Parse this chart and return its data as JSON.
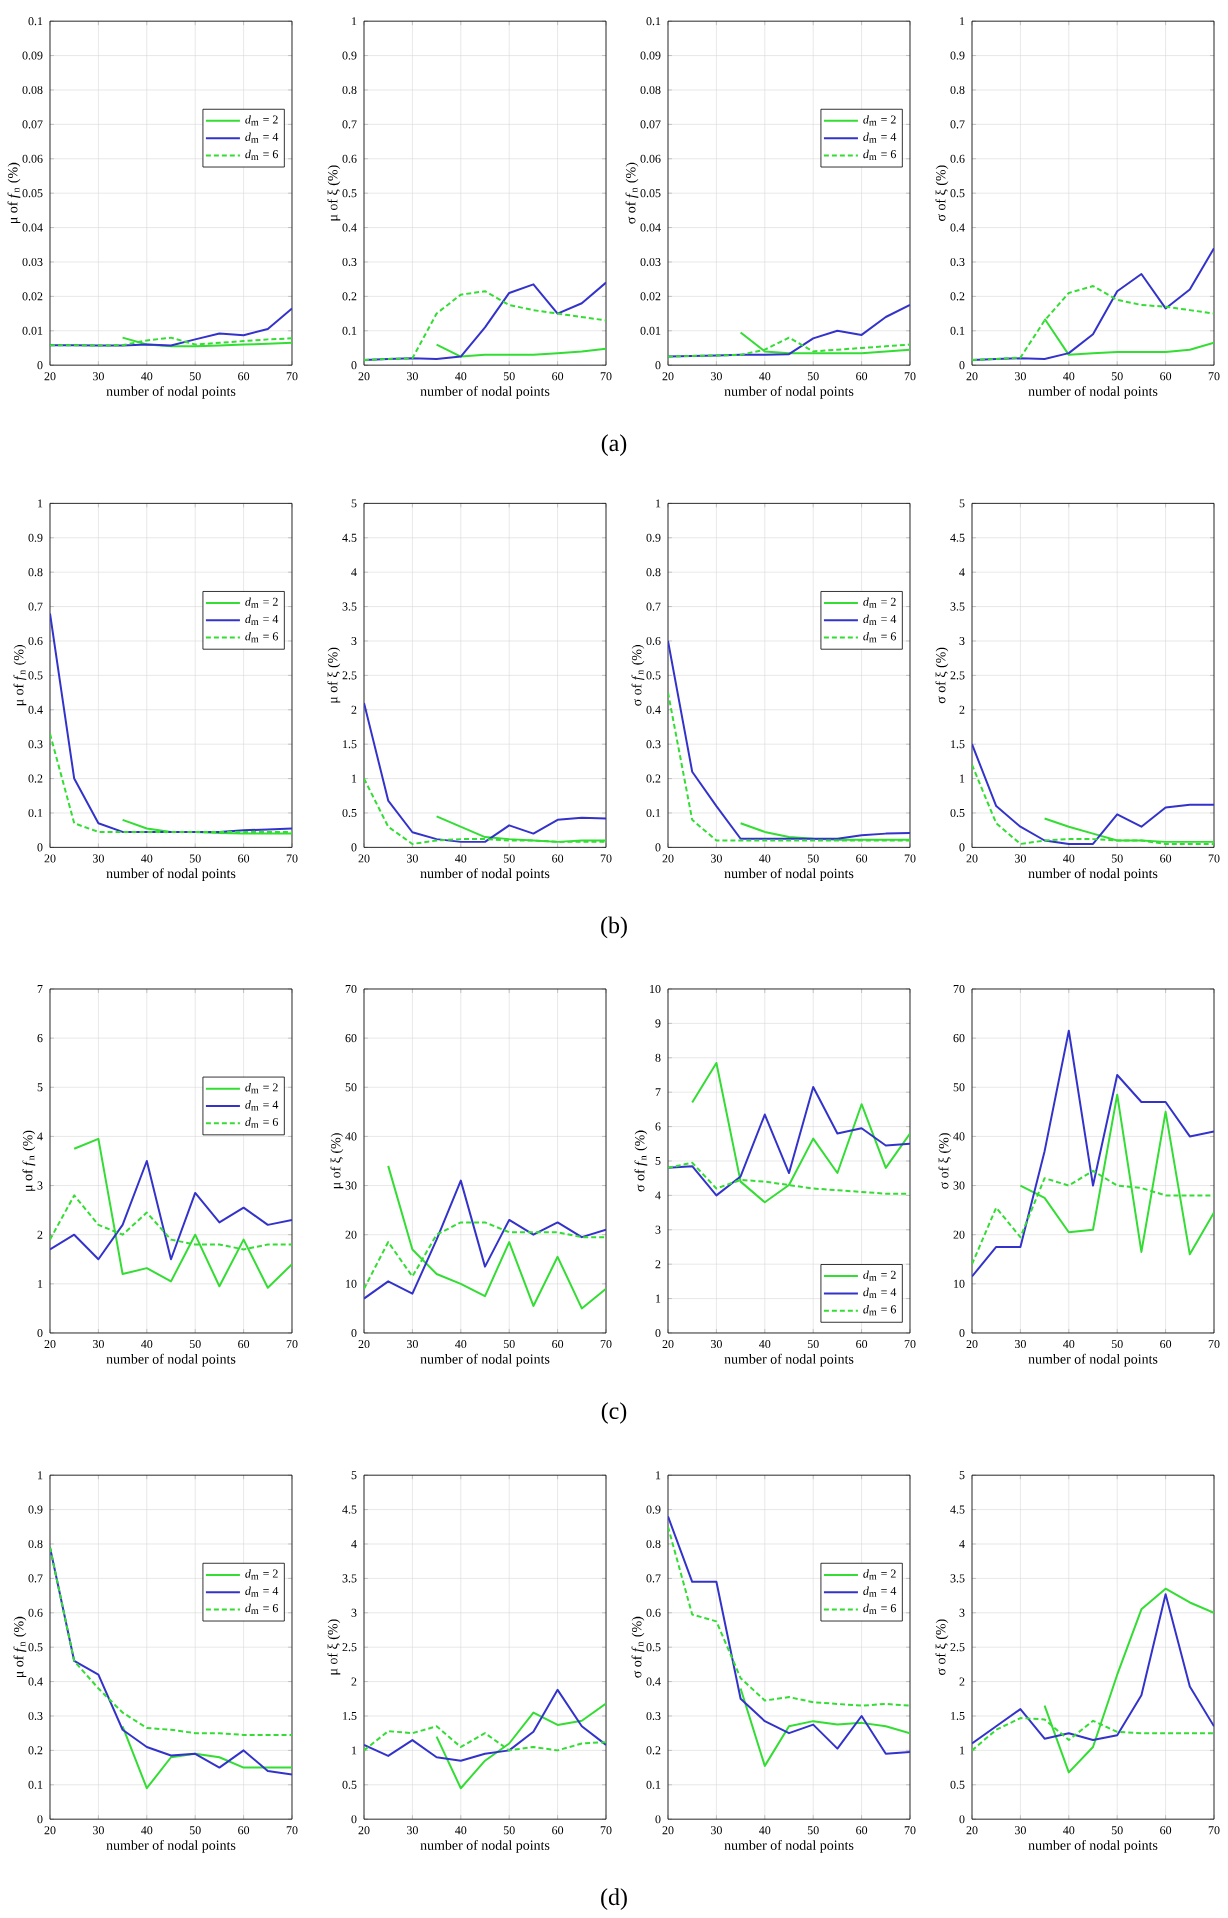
{
  "chart_data": [
    {
      "type": "line",
      "xlabel": "number of nodal points",
      "ylabel": "μ of *f*$_{n}$ (%)",
      "x": [
        20,
        25,
        30,
        35,
        40,
        45,
        50,
        55,
        60,
        65,
        70
      ],
      "xlim": [
        20,
        70
      ],
      "xticks": [
        20,
        30,
        40,
        50,
        60,
        70
      ],
      "ylim": [
        0,
        0.1
      ],
      "yticks": [
        0,
        0.01,
        0.02,
        0.03,
        0.04,
        0.05,
        0.06,
        0.07,
        0.08,
        0.09,
        0.1
      ],
      "grid": true,
      "legend": "right",
      "annotations": [
        "(a)"
      ],
      "series": [
        {
          "name": "*d*$_{m}$ = 2",
          "color": "#33dd33",
          "line_style": "solid",
          "values": [
            null,
            null,
            null,
            0.008,
            0.006,
            0.0055,
            0.0055,
            0.0057,
            0.006,
            0.0062,
            0.0065
          ]
        },
        {
          "name": "*d*$_{m}$ = 4",
          "color": "#3333cc",
          "line_style": "solid",
          "values": [
            0.0058,
            0.0058,
            0.0057,
            0.0057,
            0.006,
            0.0057,
            0.0075,
            0.0092,
            0.0087,
            0.0105,
            0.0165
          ]
        },
        {
          "name": "*d*$_{m}$ = 6",
          "color": "#33dd33",
          "line_style": "dashed",
          "values": [
            0.0058,
            0.0058,
            0.0057,
            0.0058,
            0.0072,
            0.008,
            0.006,
            0.0065,
            0.007,
            0.0075,
            0.0078
          ]
        }
      ]
    },
    {
      "type": "line",
      "xlabel": "number of nodal points",
      "ylabel": "μ of ξ (%)",
      "x": [
        20,
        25,
        30,
        35,
        40,
        45,
        50,
        55,
        60,
        65,
        70
      ],
      "xlim": [
        20,
        70
      ],
      "xticks": [
        20,
        30,
        40,
        50,
        60,
        70
      ],
      "ylim": [
        0,
        1
      ],
      "yticks": [
        0,
        0.1,
        0.2,
        0.3,
        0.4,
        0.5,
        0.6,
        0.7,
        0.8,
        0.9,
        1
      ],
      "grid": true,
      "series": [
        {
          "color": "#33dd33",
          "line_style": "solid",
          "values": [
            null,
            null,
            null,
            0.06,
            0.025,
            0.03,
            0.03,
            0.03,
            0.035,
            0.04,
            0.048
          ]
        },
        {
          "color": "#3333cc",
          "line_style": "solid",
          "values": [
            0.015,
            0.018,
            0.02,
            0.018,
            0.025,
            0.11,
            0.21,
            0.235,
            0.15,
            0.18,
            0.24
          ]
        },
        {
          "color": "#33dd33",
          "line_style": "dashed",
          "values": [
            0.015,
            0.018,
            0.02,
            0.15,
            0.205,
            0.215,
            0.175,
            0.16,
            0.15,
            0.14,
            0.13
          ]
        }
      ]
    },
    {
      "type": "line",
      "xlabel": "number of nodal points",
      "ylabel": "σ of *f*$_{n}$ (%)",
      "x": [
        20,
        25,
        30,
        35,
        40,
        45,
        50,
        55,
        60,
        65,
        70
      ],
      "xlim": [
        20,
        70
      ],
      "xticks": [
        20,
        30,
        40,
        50,
        60,
        70
      ],
      "ylim": [
        0,
        0.1
      ],
      "yticks": [
        0,
        0.01,
        0.02,
        0.03,
        0.04,
        0.05,
        0.06,
        0.07,
        0.08,
        0.09,
        0.1
      ],
      "grid": true,
      "legend": "right",
      "series": [
        {
          "name": "*d*$_{m}$ = 2",
          "color": "#33dd33",
          "line_style": "solid",
          "values": [
            null,
            null,
            null,
            0.0095,
            0.004,
            0.0035,
            0.0035,
            0.0035,
            0.0035,
            0.004,
            0.0045
          ]
        },
        {
          "name": "*d*$_{m}$ = 4",
          "color": "#3333cc",
          "line_style": "solid",
          "values": [
            0.0025,
            0.0027,
            0.0028,
            0.003,
            0.003,
            0.0032,
            0.0078,
            0.01,
            0.0088,
            0.014,
            0.0175
          ]
        },
        {
          "name": "*d*$_{m}$ = 6",
          "color": "#33dd33",
          "line_style": "dashed",
          "values": [
            0.0025,
            0.0027,
            0.0028,
            0.003,
            0.0045,
            0.008,
            0.004,
            0.0045,
            0.005,
            0.0055,
            0.006
          ]
        }
      ]
    },
    {
      "type": "line",
      "xlabel": "number of nodal points",
      "ylabel": "σ of ξ (%)",
      "x": [
        20,
        25,
        30,
        35,
        40,
        45,
        50,
        55,
        60,
        65,
        70
      ],
      "xlim": [
        20,
        70
      ],
      "xticks": [
        20,
        30,
        40,
        50,
        60,
        70
      ],
      "ylim": [
        0,
        1
      ],
      "yticks": [
        0,
        0.1,
        0.2,
        0.3,
        0.4,
        0.5,
        0.6,
        0.7,
        0.8,
        0.9,
        1
      ],
      "grid": true,
      "series": [
        {
          "color": "#33dd33",
          "line_style": "solid",
          "values": [
            null,
            null,
            null,
            0.135,
            0.03,
            0.035,
            0.038,
            0.038,
            0.038,
            0.045,
            0.065
          ]
        },
        {
          "color": "#3333cc",
          "line_style": "solid",
          "values": [
            0.015,
            0.018,
            0.02,
            0.018,
            0.035,
            0.09,
            0.215,
            0.265,
            0.165,
            0.22,
            0.34
          ]
        },
        {
          "color": "#33dd33",
          "line_style": "dashed",
          "values": [
            0.015,
            0.018,
            0.022,
            0.13,
            0.21,
            0.23,
            0.19,
            0.175,
            0.17,
            0.16,
            0.15
          ]
        }
      ]
    },
    {
      "type": "line",
      "xlabel": "number of nodal points",
      "ylabel": "μ of *f*$_{n}$ (%)",
      "x": [
        20,
        25,
        30,
        35,
        40,
        45,
        50,
        55,
        60,
        65,
        70
      ],
      "xlim": [
        20,
        70
      ],
      "xticks": [
        20,
        30,
        40,
        50,
        60,
        70
      ],
      "ylim": [
        0,
        1
      ],
      "yticks": [
        0,
        0.1,
        0.2,
        0.3,
        0.4,
        0.5,
        0.6,
        0.7,
        0.8,
        0.9,
        1
      ],
      "grid": true,
      "legend": "right",
      "annotations": [
        "(b)"
      ],
      "series": [
        {
          "name": "*d*$_{m}$ = 2",
          "color": "#33dd33",
          "line_style": "solid",
          "values": [
            null,
            null,
            null,
            0.08,
            0.055,
            0.045,
            0.045,
            0.042,
            0.04,
            0.04,
            0.04
          ]
        },
        {
          "name": "*d*$_{m}$ = 4",
          "color": "#3333cc",
          "line_style": "solid",
          "values": [
            0.68,
            0.2,
            0.07,
            0.045,
            0.045,
            0.045,
            0.045,
            0.045,
            0.05,
            0.052,
            0.055
          ]
        },
        {
          "name": "*d*$_{m}$ = 6",
          "color": "#33dd33",
          "line_style": "dashed",
          "values": [
            0.33,
            0.07,
            0.045,
            0.045,
            0.045,
            0.045,
            0.045,
            0.045,
            0.045,
            0.045,
            0.045
          ]
        }
      ]
    },
    {
      "type": "line",
      "xlabel": "number of nodal points",
      "ylabel": "μ of ξ (%)",
      "x": [
        20,
        25,
        30,
        35,
        40,
        45,
        50,
        55,
        60,
        65,
        70
      ],
      "xlim": [
        20,
        70
      ],
      "xticks": [
        20,
        30,
        40,
        50,
        60,
        70
      ],
      "ylim": [
        0,
        5
      ],
      "yticks": [
        0,
        0.5,
        1,
        1.5,
        2,
        2.5,
        3,
        3.5,
        4,
        4.5,
        5
      ],
      "grid": true,
      "series": [
        {
          "color": "#33dd33",
          "line_style": "solid",
          "values": [
            null,
            null,
            null,
            0.45,
            0.3,
            0.15,
            0.12,
            0.1,
            0.08,
            0.1,
            0.1
          ]
        },
        {
          "color": "#3333cc",
          "line_style": "solid",
          "values": [
            2.1,
            0.68,
            0.22,
            0.12,
            0.08,
            0.08,
            0.32,
            0.2,
            0.4,
            0.43,
            0.42
          ]
        },
        {
          "color": "#33dd33",
          "line_style": "dashed",
          "values": [
            1.0,
            0.3,
            0.05,
            0.1,
            0.12,
            0.12,
            0.1,
            0.1,
            0.08,
            0.08,
            0.08
          ]
        }
      ]
    },
    {
      "type": "line",
      "xlabel": "number of nodal points",
      "ylabel": "σ of *f*$_{n}$ (%)",
      "x": [
        20,
        25,
        30,
        35,
        40,
        45,
        50,
        55,
        60,
        65,
        70
      ],
      "xlim": [
        20,
        70
      ],
      "xticks": [
        20,
        30,
        40,
        50,
        60,
        70
      ],
      "ylim": [
        0,
        1
      ],
      "yticks": [
        0,
        0.1,
        0.2,
        0.3,
        0.4,
        0.5,
        0.6,
        0.7,
        0.8,
        0.9,
        1
      ],
      "grid": true,
      "legend": "right",
      "series": [
        {
          "name": "*d*$_{m}$ = 2",
          "color": "#33dd33",
          "line_style": "solid",
          "values": [
            null,
            null,
            null,
            0.07,
            0.045,
            0.03,
            0.025,
            0.022,
            0.022,
            0.022,
            0.022
          ]
        },
        {
          "name": "*d*$_{m}$ = 4",
          "color": "#3333cc",
          "line_style": "solid",
          "values": [
            0.6,
            0.22,
            0.12,
            0.025,
            0.025,
            0.025,
            0.025,
            0.025,
            0.035,
            0.04,
            0.042
          ]
        },
        {
          "name": "*d*$_{m}$ = 6",
          "color": "#33dd33",
          "line_style": "dashed",
          "values": [
            0.45,
            0.08,
            0.02,
            0.02,
            0.02,
            0.02,
            0.02,
            0.02,
            0.02,
            0.02,
            0.02
          ]
        }
      ]
    },
    {
      "type": "line",
      "xlabel": "number of nodal points",
      "ylabel": "σ of ξ (%)",
      "x": [
        20,
        25,
        30,
        35,
        40,
        45,
        50,
        55,
        60,
        65,
        70
      ],
      "xlim": [
        20,
        70
      ],
      "xticks": [
        20,
        30,
        40,
        50,
        60,
        70
      ],
      "ylim": [
        0,
        5
      ],
      "yticks": [
        0,
        0.5,
        1,
        1.5,
        2,
        2.5,
        3,
        3.5,
        4,
        4.5,
        5
      ],
      "grid": true,
      "series": [
        {
          "color": "#33dd33",
          "line_style": "solid",
          "values": [
            null,
            null,
            null,
            0.42,
            0.3,
            0.2,
            0.1,
            0.1,
            0.08,
            0.08,
            0.08
          ]
        },
        {
          "color": "#3333cc",
          "line_style": "solid",
          "values": [
            1.5,
            0.6,
            0.3,
            0.1,
            0.05,
            0.05,
            0.48,
            0.3,
            0.58,
            0.62,
            0.62
          ]
        },
        {
          "color": "#33dd33",
          "line_style": "dashed",
          "values": [
            1.2,
            0.35,
            0.05,
            0.1,
            0.12,
            0.12,
            0.1,
            0.1,
            0.05,
            0.05,
            0.05
          ]
        }
      ]
    },
    {
      "type": "line",
      "xlabel": "number of nodal points",
      "ylabel": "μ of *f*$_{n}$ (%)",
      "x": [
        20,
        25,
        30,
        35,
        40,
        45,
        50,
        55,
        60,
        65,
        70
      ],
      "xlim": [
        20,
        70
      ],
      "xticks": [
        20,
        30,
        40,
        50,
        60,
        70
      ],
      "ylim": [
        0,
        7
      ],
      "yticks": [
        0,
        1,
        2,
        3,
        4,
        5,
        6,
        7
      ],
      "grid": true,
      "legend": "right",
      "annotations": [
        "(c)"
      ],
      "series": [
        {
          "name": "*d*$_{m}$ = 2",
          "color": "#33dd33",
          "line_style": "solid",
          "values": [
            null,
            3.75,
            3.95,
            1.2,
            1.32,
            1.05,
            2.0,
            0.95,
            1.9,
            0.92,
            1.4
          ]
        },
        {
          "name": "*d*$_{m}$ = 4",
          "color": "#3333cc",
          "line_style": "solid",
          "values": [
            1.7,
            2.0,
            1.5,
            2.2,
            3.5,
            1.5,
            2.85,
            2.25,
            2.55,
            2.2,
            2.3
          ]
        },
        {
          "name": "*d*$_{m}$ = 6",
          "color": "#33dd33",
          "line_style": "dashed",
          "values": [
            1.9,
            2.8,
            2.2,
            2.0,
            2.45,
            1.9,
            1.8,
            1.8,
            1.7,
            1.8,
            1.8
          ]
        }
      ]
    },
    {
      "type": "line",
      "xlabel": "number of nodal points",
      "ylabel": "μ of ξ (%)",
      "x": [
        20,
        25,
        30,
        35,
        40,
        45,
        50,
        55,
        60,
        65,
        70
      ],
      "xlim": [
        20,
        70
      ],
      "xticks": [
        20,
        30,
        40,
        50,
        60,
        70
      ],
      "ylim": [
        0,
        70
      ],
      "yticks": [
        0,
        10,
        20,
        30,
        40,
        50,
        60,
        70
      ],
      "grid": true,
      "series": [
        {
          "color": "#33dd33",
          "line_style": "solid",
          "values": [
            null,
            34,
            17,
            12,
            10,
            7.5,
            18.5,
            5.5,
            15.5,
            5,
            9
          ]
        },
        {
          "color": "#3333cc",
          "line_style": "solid",
          "values": [
            7,
            10.5,
            8,
            19,
            31,
            13.5,
            23,
            20,
            22.5,
            19.5,
            21
          ]
        },
        {
          "color": "#33dd33",
          "line_style": "dashed",
          "values": [
            9,
            18.5,
            11.5,
            20,
            22.5,
            22.5,
            20.5,
            20.5,
            20.5,
            19.5,
            19.5
          ]
        }
      ]
    },
    {
      "type": "line",
      "xlabel": "number of nodal points",
      "ylabel": "σ of *f*$_{n}$ (%)",
      "x": [
        20,
        25,
        30,
        35,
        40,
        45,
        50,
        55,
        60,
        65,
        70
      ],
      "xlim": [
        20,
        70
      ],
      "xticks": [
        20,
        30,
        40,
        50,
        60,
        70
      ],
      "ylim": [
        0,
        10
      ],
      "yticks": [
        0,
        1,
        2,
        3,
        4,
        5,
        6,
        7,
        8,
        9,
        10
      ],
      "grid": true,
      "legend": "bottom right",
      "series": [
        {
          "name": "*d*$_{m}$ = 2",
          "color": "#33dd33",
          "line_style": "solid",
          "values": [
            null,
            6.7,
            7.85,
            4.4,
            3.8,
            4.3,
            5.65,
            4.65,
            6.65,
            4.8,
            5.8
          ]
        },
        {
          "name": "*d*$_{m}$ = 4",
          "color": "#3333cc",
          "line_style": "solid",
          "values": [
            4.8,
            4.85,
            4.0,
            4.55,
            6.35,
            4.65,
            7.15,
            5.8,
            5.95,
            5.45,
            5.5
          ]
        },
        {
          "name": "*d*$_{m}$ = 6",
          "color": "#33dd33",
          "line_style": "dashed",
          "values": [
            4.8,
            4.95,
            4.2,
            4.45,
            4.4,
            4.3,
            4.2,
            4.15,
            4.1,
            4.05,
            4.05
          ]
        }
      ]
    },
    {
      "type": "line",
      "xlabel": "number of nodal points",
      "ylabel": "σ of ξ (%)",
      "x": [
        20,
        25,
        30,
        35,
        40,
        45,
        50,
        55,
        60,
        65,
        70
      ],
      "xlim": [
        20,
        70
      ],
      "xticks": [
        20,
        30,
        40,
        50,
        60,
        70
      ],
      "ylim": [
        0,
        70
      ],
      "yticks": [
        0,
        10,
        20,
        30,
        40,
        50,
        60,
        70
      ],
      "grid": true,
      "series": [
        {
          "color": "#33dd33",
          "line_style": "solid",
          "values": [
            null,
            null,
            30,
            27.5,
            20.5,
            21,
            48.5,
            16.5,
            45,
            16,
            24.5
          ]
        },
        {
          "color": "#3333cc",
          "line_style": "solid",
          "values": [
            11.5,
            17.5,
            17.5,
            37,
            61.5,
            30,
            52.5,
            47,
            47,
            40,
            41
          ]
        },
        {
          "color": "#33dd33",
          "line_style": "dashed",
          "values": [
            14,
            25.5,
            19.5,
            31.5,
            30,
            33,
            30,
            29.5,
            28,
            28,
            28
          ]
        }
      ]
    },
    {
      "type": "line",
      "xlabel": "number of nodal points",
      "ylabel": "μ of *f*$_{n}$ (%)",
      "x": [
        20,
        25,
        30,
        35,
        40,
        45,
        50,
        55,
        60,
        65,
        70
      ],
      "xlim": [
        20,
        70
      ],
      "xticks": [
        20,
        30,
        40,
        50,
        60,
        70
      ],
      "ylim": [
        0,
        1
      ],
      "yticks": [
        0,
        0.1,
        0.2,
        0.3,
        0.4,
        0.5,
        0.6,
        0.7,
        0.8,
        0.9,
        1
      ],
      "grid": true,
      "legend": "right",
      "annotations": [
        "(d)"
      ],
      "series": [
        {
          "name": "*d*$_{m}$ = 2",
          "color": "#33dd33",
          "line_style": "solid",
          "values": [
            null,
            null,
            null,
            0.27,
            0.09,
            0.18,
            0.19,
            0.18,
            0.15,
            0.15,
            0.15
          ]
        },
        {
          "name": "*d*$_{m}$ = 4",
          "color": "#3333cc",
          "line_style": "solid",
          "values": [
            0.79,
            0.46,
            0.42,
            0.26,
            0.21,
            0.185,
            0.19,
            0.15,
            0.2,
            0.14,
            0.13
          ]
        },
        {
          "name": "*d*$_{m}$ = 6",
          "color": "#33dd33",
          "line_style": "dashed",
          "values": [
            0.79,
            0.46,
            0.38,
            0.31,
            0.265,
            0.26,
            0.25,
            0.25,
            0.245,
            0.245,
            0.245
          ]
        }
      ]
    },
    {
      "type": "line",
      "xlabel": "number of nodal points",
      "ylabel": "μ of ξ (%)",
      "x": [
        20,
        25,
        30,
        35,
        40,
        45,
        50,
        55,
        60,
        65,
        70
      ],
      "xlim": [
        20,
        70
      ],
      "xticks": [
        20,
        30,
        40,
        50,
        60,
        70
      ],
      "ylim": [
        0,
        5
      ],
      "yticks": [
        0,
        0.5,
        1,
        1.5,
        2,
        2.5,
        3,
        3.5,
        4,
        4.5,
        5
      ],
      "grid": true,
      "series": [
        {
          "color": "#33dd33",
          "line_style": "solid",
          "values": [
            null,
            null,
            null,
            1.2,
            0.45,
            0.85,
            1.1,
            1.55,
            1.37,
            1.43,
            1.68
          ]
        },
        {
          "color": "#3333cc",
          "line_style": "solid",
          "values": [
            1.08,
            0.92,
            1.15,
            0.9,
            0.85,
            0.95,
            1.0,
            1.27,
            1.88,
            1.35,
            1.08
          ]
        },
        {
          "color": "#33dd33",
          "line_style": "dashed",
          "values": [
            1.0,
            1.28,
            1.25,
            1.35,
            1.05,
            1.25,
            1.0,
            1.05,
            1.0,
            1.1,
            1.12
          ]
        }
      ]
    },
    {
      "type": "line",
      "xlabel": "number of nodal points",
      "ylabel": "σ of *f*$_{n}$ (%)",
      "x": [
        20,
        25,
        30,
        35,
        40,
        45,
        50,
        55,
        60,
        65,
        70
      ],
      "xlim": [
        20,
        70
      ],
      "xticks": [
        20,
        30,
        40,
        50,
        60,
        70
      ],
      "ylim": [
        0,
        1
      ],
      "yticks": [
        0,
        0.1,
        0.2,
        0.3,
        0.4,
        0.5,
        0.6,
        0.7,
        0.8,
        0.9,
        1
      ],
      "grid": true,
      "legend": "right",
      "series": [
        {
          "name": "*d*$_{m}$ = 2",
          "color": "#33dd33",
          "line_style": "solid",
          "values": [
            null,
            null,
            null,
            0.38,
            0.155,
            0.27,
            0.285,
            0.275,
            0.28,
            0.27,
            0.25
          ]
        },
        {
          "name": "*d*$_{m}$ = 4",
          "color": "#3333cc",
          "line_style": "solid",
          "values": [
            0.88,
            0.69,
            0.69,
            0.35,
            0.285,
            0.25,
            0.275,
            0.205,
            0.3,
            0.19,
            0.195
          ]
        },
        {
          "name": "*d*$_{m}$ = 6",
          "color": "#33dd33",
          "line_style": "dashed",
          "values": [
            0.85,
            0.595,
            0.575,
            0.41,
            0.345,
            0.355,
            0.34,
            0.335,
            0.33,
            0.335,
            0.33
          ]
        }
      ]
    },
    {
      "type": "line",
      "xlabel": "number of nodal points",
      "ylabel": "σ of ξ (%)",
      "x": [
        20,
        25,
        30,
        35,
        40,
        45,
        50,
        55,
        60,
        65,
        70
      ],
      "xlim": [
        20,
        70
      ],
      "xticks": [
        20,
        30,
        40,
        50,
        60,
        70
      ],
      "ylim": [
        0,
        5
      ],
      "yticks": [
        0,
        0.5,
        1,
        1.5,
        2,
        2.5,
        3,
        3.5,
        4,
        4.5,
        5
      ],
      "grid": true,
      "series": [
        {
          "color": "#33dd33",
          "line_style": "solid",
          "values": [
            null,
            null,
            null,
            1.65,
            0.68,
            1.05,
            2.1,
            3.05,
            3.35,
            3.15,
            3.0
          ]
        },
        {
          "color": "#3333cc",
          "line_style": "solid",
          "values": [
            1.1,
            1.35,
            1.6,
            1.17,
            1.25,
            1.15,
            1.22,
            1.8,
            3.27,
            1.93,
            1.35
          ]
        },
        {
          "color": "#33dd33",
          "line_style": "dashed",
          "values": [
            1.0,
            1.3,
            1.47,
            1.45,
            1.15,
            1.43,
            1.27,
            1.25,
            1.25,
            1.25,
            1.25
          ]
        }
      ]
    }
  ]
}
